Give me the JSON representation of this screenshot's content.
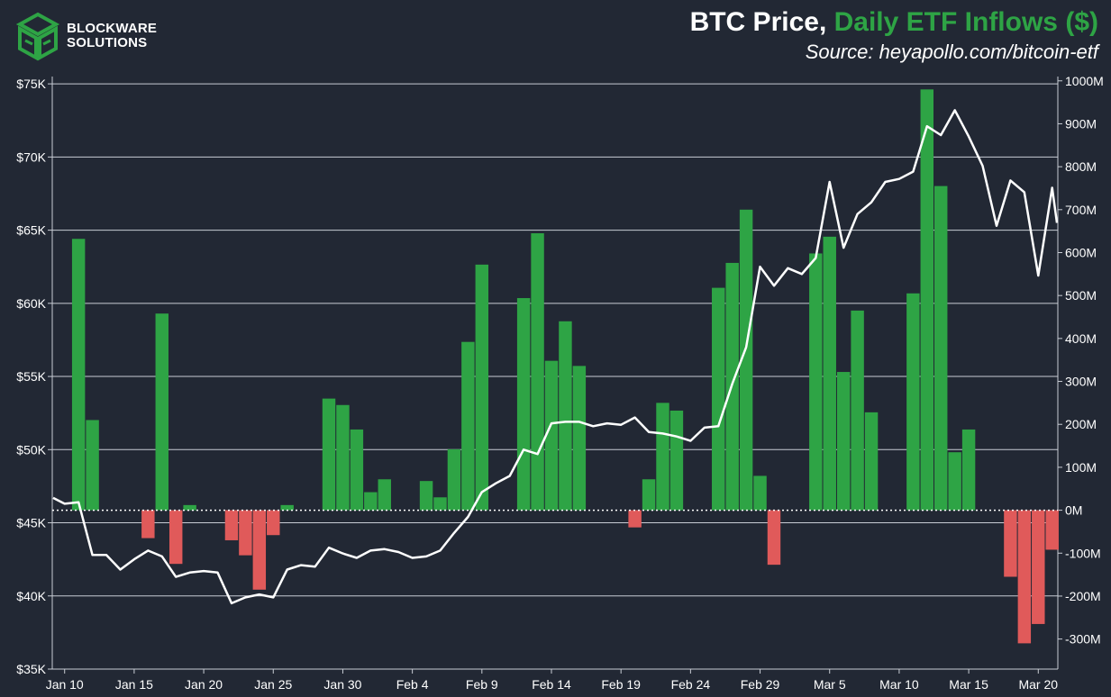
{
  "brand": {
    "logo_icon": "blockware-cube-logo",
    "name_line1": "BLOCKWARE",
    "name_line2": "SOLUTIONS"
  },
  "header": {
    "title_white": "BTC Price,",
    "title_green": "Daily ETF Inflows ($)",
    "source": "Source: heyapollo.com/bitcoin-etf"
  },
  "colors": {
    "background": "#222834",
    "inflow": "#2ea445",
    "outflow": "#e05a5a",
    "price_line": "#ffffff",
    "grid": "#c8ccd4"
  },
  "chart_data": {
    "type": "bar+line",
    "x_tick_labels": [
      "Jan 10",
      "Jan 15",
      "Jan 20",
      "Jan 25",
      "Jan 30",
      "Feb 4",
      "Feb 9",
      "Feb 14",
      "Feb 19",
      "Feb 24",
      "Feb 29",
      "Mar 5",
      "Mar 10",
      "Mar 15",
      "Mar 20"
    ],
    "x_ticks": [
      "2024-01-10",
      "2024-01-15",
      "2024-01-20",
      "2024-01-25",
      "2024-01-30",
      "2024-02-04",
      "2024-02-09",
      "2024-02-14",
      "2024-02-19",
      "2024-02-24",
      "2024-02-29",
      "2024-03-05",
      "2024-03-10",
      "2024-03-15",
      "2024-03-20"
    ],
    "x_range": [
      "2024-01-10",
      "2024-03-21"
    ],
    "left_axis": {
      "ticks": [
        35000,
        40000,
        45000,
        50000,
        55000,
        60000,
        65000,
        70000,
        75000
      ],
      "tick_labels": [
        "$35K",
        "$40K",
        "$45K",
        "$50K",
        "$55K",
        "$60K",
        "$65K",
        "$70K",
        "$75K"
      ],
      "range": [
        35000,
        75500
      ]
    },
    "right_axis": {
      "ticks": [
        -300,
        -200,
        -100,
        0,
        100,
        200,
        300,
        400,
        500,
        600,
        700,
        800,
        900,
        1000
      ],
      "tick_labels": [
        "-300M",
        "-200M",
        "-100M",
        "0M",
        "100M",
        "200M",
        "300M",
        "400M",
        "500M",
        "600M",
        "700M",
        "800M",
        "900M",
        "1000M"
      ],
      "range": [
        -370,
        1010
      ],
      "units": "M"
    },
    "grid": true,
    "zero_line": "dotted",
    "series": [
      {
        "type": "bar",
        "axis": "right",
        "points": [
          [
            "2024-01-11",
            632
          ],
          [
            "2024-01-12",
            210
          ],
          [
            "2024-01-16",
            -65
          ],
          [
            "2024-01-17",
            458
          ],
          [
            "2024-01-18",
            -125
          ],
          [
            "2024-01-19",
            12
          ],
          [
            "2024-01-22",
            -70
          ],
          [
            "2024-01-23",
            -105
          ],
          [
            "2024-01-24",
            -185
          ],
          [
            "2024-01-25",
            -58
          ],
          [
            "2024-01-26",
            12
          ],
          [
            "2024-01-29",
            260
          ],
          [
            "2024-01-30",
            245
          ],
          [
            "2024-01-31",
            188
          ],
          [
            "2024-02-01",
            42
          ],
          [
            "2024-02-02",
            72
          ],
          [
            "2024-02-05",
            68
          ],
          [
            "2024-02-06",
            30
          ],
          [
            "2024-02-07",
            142
          ],
          [
            "2024-02-08",
            392
          ],
          [
            "2024-02-09",
            572
          ],
          [
            "2024-02-12",
            494
          ],
          [
            "2024-02-13",
            645
          ],
          [
            "2024-02-14",
            348
          ],
          [
            "2024-02-15",
            440
          ],
          [
            "2024-02-16",
            336
          ],
          [
            "2024-02-20",
            -40
          ],
          [
            "2024-02-21",
            72
          ],
          [
            "2024-02-22",
            250
          ],
          [
            "2024-02-23",
            232
          ],
          [
            "2024-02-26",
            518
          ],
          [
            "2024-02-27",
            576
          ],
          [
            "2024-02-28",
            700
          ],
          [
            "2024-02-29",
            80
          ],
          [
            "2024-03-01",
            -127
          ],
          [
            "2024-03-04",
            598
          ],
          [
            "2024-03-05",
            637
          ],
          [
            "2024-03-06",
            322
          ],
          [
            "2024-03-07",
            465
          ],
          [
            "2024-03-08",
            228
          ],
          [
            "2024-03-11",
            505
          ],
          [
            "2024-03-12",
            980
          ],
          [
            "2024-03-13",
            755
          ],
          [
            "2024-03-14",
            135
          ],
          [
            "2024-03-15",
            188
          ],
          [
            "2024-03-18",
            -155
          ],
          [
            "2024-03-19",
            -310
          ],
          [
            "2024-03-20",
            -265
          ],
          [
            "2024-03-21",
            -92
          ]
        ]
      },
      {
        "type": "line",
        "axis": "left",
        "points": [
          [
            "2024-01-09",
            46700
          ],
          [
            "2024-01-10",
            46300
          ],
          [
            "2024-01-11",
            46400
          ],
          [
            "2024-01-12",
            42800
          ],
          [
            "2024-01-13",
            42800
          ],
          [
            "2024-01-14",
            41800
          ],
          [
            "2024-01-15",
            42500
          ],
          [
            "2024-01-16",
            43100
          ],
          [
            "2024-01-17",
            42700
          ],
          [
            "2024-01-18",
            41300
          ],
          [
            "2024-01-19",
            41600
          ],
          [
            "2024-01-20",
            41700
          ],
          [
            "2024-01-21",
            41600
          ],
          [
            "2024-01-22",
            39500
          ],
          [
            "2024-01-23",
            39900
          ],
          [
            "2024-01-24",
            40100
          ],
          [
            "2024-01-25",
            39900
          ],
          [
            "2024-01-26",
            41800
          ],
          [
            "2024-01-27",
            42100
          ],
          [
            "2024-01-28",
            42000
          ],
          [
            "2024-01-29",
            43300
          ],
          [
            "2024-01-30",
            42900
          ],
          [
            "2024-01-31",
            42600
          ],
          [
            "2024-02-01",
            43100
          ],
          [
            "2024-02-02",
            43200
          ],
          [
            "2024-02-03",
            43000
          ],
          [
            "2024-02-04",
            42600
          ],
          [
            "2024-02-05",
            42700
          ],
          [
            "2024-02-06",
            43100
          ],
          [
            "2024-02-07",
            44300
          ],
          [
            "2024-02-08",
            45400
          ],
          [
            "2024-02-09",
            47100
          ],
          [
            "2024-02-10",
            47700
          ],
          [
            "2024-02-11",
            48200
          ],
          [
            "2024-02-12",
            50000
          ],
          [
            "2024-02-13",
            49700
          ],
          [
            "2024-02-14",
            51800
          ],
          [
            "2024-02-15",
            51900
          ],
          [
            "2024-02-16",
            51900
          ],
          [
            "2024-02-17",
            51600
          ],
          [
            "2024-02-18",
            51800
          ],
          [
            "2024-02-19",
            51700
          ],
          [
            "2024-02-20",
            52200
          ],
          [
            "2024-02-21",
            51200
          ],
          [
            "2024-02-22",
            51100
          ],
          [
            "2024-02-23",
            50900
          ],
          [
            "2024-02-24",
            50600
          ],
          [
            "2024-02-25",
            51500
          ],
          [
            "2024-02-26",
            51600
          ],
          [
            "2024-02-27",
            54500
          ],
          [
            "2024-02-28",
            57000
          ],
          [
            "2024-02-29",
            62500
          ],
          [
            "2024-03-01",
            61200
          ],
          [
            "2024-03-02",
            62400
          ],
          [
            "2024-03-03",
            62000
          ],
          [
            "2024-03-04",
            63100
          ],
          [
            "2024-03-05",
            68300
          ],
          [
            "2024-03-06",
            63800
          ],
          [
            "2024-03-07",
            66100
          ],
          [
            "2024-03-08",
            66900
          ],
          [
            "2024-03-09",
            68300
          ],
          [
            "2024-03-10",
            68500
          ],
          [
            "2024-03-11",
            69000
          ],
          [
            "2024-03-12",
            72100
          ],
          [
            "2024-03-13",
            71500
          ],
          [
            "2024-03-14",
            73200
          ],
          [
            "2024-03-15",
            71400
          ],
          [
            "2024-03-16",
            69400
          ],
          [
            "2024-03-17",
            65300
          ],
          [
            "2024-03-18",
            68400
          ],
          [
            "2024-03-19",
            67600
          ],
          [
            "2024-03-20",
            61900
          ],
          [
            "2024-03-21",
            67900
          ],
          [
            "2024-03-22",
            65500
          ]
        ]
      }
    ]
  }
}
